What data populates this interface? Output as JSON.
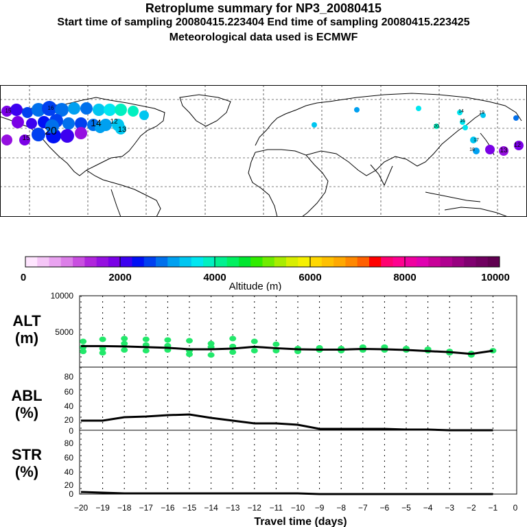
{
  "header": {
    "title": "Retroplume summary for NP3_20080415",
    "sampling": "Start time of sampling 20080415.223404     End time of sampling 20080415.223425",
    "met": "Meteorological data used is ECMWF"
  },
  "colorbar": {
    "label": "Altitude (m)",
    "ticks": [
      "0",
      "2000",
      "4000",
      "6000",
      "8000",
      "10000"
    ],
    "colors": [
      "#ffe6ff",
      "#f5c6f7",
      "#e9a3f0",
      "#dc7fe8",
      "#c94fe0",
      "#b026dc",
      "#9510e0",
      "#7a00e6",
      "#3c00f0",
      "#0010f5",
      "#0040f0",
      "#0070ec",
      "#00a0f0",
      "#00c6f0",
      "#00e6f0",
      "#00f0c0",
      "#00f090",
      "#00f060",
      "#00e630",
      "#30ec00",
      "#70ec00",
      "#a8ec00",
      "#d8ee00",
      "#f5f000",
      "#ffd800",
      "#ffc000",
      "#ffa800",
      "#ff8800",
      "#ff6000",
      "#ff0000",
      "#ff0070",
      "#ff0090",
      "#f000a0",
      "#e000b0",
      "#c80098",
      "#b00090",
      "#980080",
      "#800070",
      "#700060",
      "#600050"
    ]
  },
  "map": {
    "labels": [
      {
        "text": "20"
      },
      {
        "text": "15"
      },
      {
        "text": "14"
      },
      {
        "text": "12"
      },
      {
        "text": "13"
      },
      {
        "text": "15"
      },
      {
        "text": "16"
      },
      {
        "text": "17"
      },
      {
        "text": "18"
      },
      {
        "text": "19"
      },
      {
        "text": "20"
      },
      {
        "text": "14"
      },
      {
        "text": "16"
      },
      {
        "text": "13"
      },
      {
        "text": "12"
      }
    ]
  },
  "chart_data": [
    {
      "type": "scatter",
      "name": "ALT",
      "title": "ALT",
      "ylabel": "(m)",
      "xlabel": "Travel time (days)",
      "xlim": [
        -20,
        0
      ],
      "ylim": [
        0,
        10000
      ],
      "yticks": [
        "10000",
        "5000"
      ],
      "points": [
        {
          "x": -19.9,
          "y": 2800
        },
        {
          "x": -19.9,
          "y": 3600
        },
        {
          "x": -19.9,
          "y": 2200
        },
        {
          "x": -19.0,
          "y": 3900
        },
        {
          "x": -19.0,
          "y": 2600
        },
        {
          "x": -19.0,
          "y": 2000
        },
        {
          "x": -18.0,
          "y": 4000
        },
        {
          "x": -18.0,
          "y": 3300
        },
        {
          "x": -18.0,
          "y": 2400
        },
        {
          "x": -17.0,
          "y": 3900
        },
        {
          "x": -17.0,
          "y": 3100
        },
        {
          "x": -17.0,
          "y": 2300
        },
        {
          "x": -16.0,
          "y": 3800
        },
        {
          "x": -16.0,
          "y": 3000
        },
        {
          "x": -16.0,
          "y": 2400
        },
        {
          "x": -15.0,
          "y": 3700
        },
        {
          "x": -15.0,
          "y": 2300
        },
        {
          "x": -15.0,
          "y": 1800
        },
        {
          "x": -14.0,
          "y": 3300
        },
        {
          "x": -14.0,
          "y": 2800
        },
        {
          "x": -14.0,
          "y": 1700
        },
        {
          "x": -13.0,
          "y": 4000
        },
        {
          "x": -13.0,
          "y": 2900
        },
        {
          "x": -13.0,
          "y": 2100
        },
        {
          "x": -12.0,
          "y": 3600
        },
        {
          "x": -12.0,
          "y": 2300
        },
        {
          "x": -11.0,
          "y": 3200
        },
        {
          "x": -11.0,
          "y": 2300
        },
        {
          "x": -10.0,
          "y": 2600
        },
        {
          "x": -10.0,
          "y": 2200
        },
        {
          "x": -9.0,
          "y": 2700
        },
        {
          "x": -9.0,
          "y": 2400
        },
        {
          "x": -8.0,
          "y": 2600
        },
        {
          "x": -8.0,
          "y": 2300
        },
        {
          "x": -7.0,
          "y": 2800
        },
        {
          "x": -7.0,
          "y": 2400
        },
        {
          "x": -6.0,
          "y": 2800
        },
        {
          "x": -6.0,
          "y": 2400
        },
        {
          "x": -5.0,
          "y": 2600
        },
        {
          "x": -5.0,
          "y": 2400
        },
        {
          "x": -4.0,
          "y": 2500
        },
        {
          "x": -4.0,
          "y": 2300
        },
        {
          "x": -3.0,
          "y": 2200
        },
        {
          "x": -3.0,
          "y": 2000
        },
        {
          "x": -2.0,
          "y": 1900
        },
        {
          "x": -2.0,
          "y": 1700
        },
        {
          "x": -1.0,
          "y": 2300
        }
      ],
      "line": {
        "x": [
          -20,
          -19,
          -18,
          -17,
          -16,
          -15,
          -14,
          -13,
          -12,
          -11,
          -10,
          -9,
          -8,
          -7,
          -6,
          -5,
          -4,
          -3,
          -2,
          -1
        ],
        "y": [
          2950,
          2950,
          2900,
          2800,
          2700,
          2500,
          2500,
          2600,
          2850,
          2650,
          2500,
          2450,
          2450,
          2550,
          2500,
          2400,
          2250,
          2100,
          1850,
          2300
        ]
      }
    },
    {
      "type": "line",
      "name": "ABL",
      "title": "ABL",
      "ylabel": "(%)",
      "xlim": [
        -20,
        0
      ],
      "ylim": [
        0,
        90
      ],
      "yticks": [
        "0",
        "20",
        "40",
        "60",
        "80"
      ],
      "x": [
        -20,
        -19,
        -18,
        -17,
        -16,
        -15,
        -14,
        -13,
        -12,
        -11,
        -10,
        -9,
        -8,
        -7,
        -6,
        -5,
        -4,
        -3,
        -2,
        -1
      ],
      "values": [
        14,
        14,
        19,
        20,
        22,
        23,
        18,
        14,
        10,
        10,
        8,
        2,
        2,
        2,
        2,
        1,
        1,
        0,
        0,
        0
      ]
    },
    {
      "type": "line",
      "name": "STR",
      "title": "STR",
      "ylabel": "(%)",
      "xlim": [
        -20,
        0
      ],
      "ylim": [
        0,
        90
      ],
      "yticks": [
        "0",
        "20",
        "40",
        "60",
        "80"
      ],
      "x": [
        -20,
        -19,
        -18,
        -17,
        -16,
        -15,
        -14,
        -13,
        -12,
        -11,
        -10,
        -9,
        -8,
        -7,
        -6,
        -5,
        -4,
        -3,
        -2,
        -1
      ],
      "values": [
        3,
        2,
        1,
        1,
        1,
        1,
        1,
        1,
        1,
        1,
        1,
        0,
        0,
        0,
        0,
        0,
        0,
        0,
        0,
        0
      ]
    }
  ],
  "xaxis": {
    "ticks": [
      "−20",
      "−19",
      "−18",
      "−17",
      "−16",
      "−15",
      "−14",
      "−13",
      "−12",
      "−11",
      "−10",
      "−9",
      "−8",
      "−7",
      "−6",
      "−5",
      "−4",
      "−3",
      "−2",
      "−1",
      "0"
    ]
  }
}
